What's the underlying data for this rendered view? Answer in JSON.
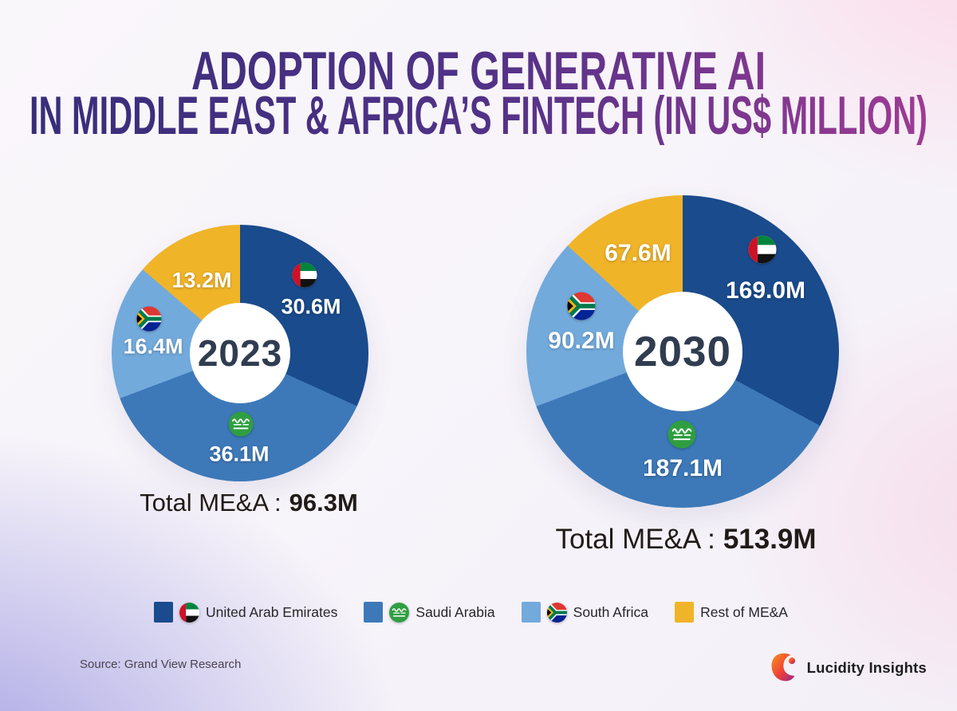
{
  "title": {
    "line1": "ADOPTION OF GENERATIVE AI",
    "line2": "IN MIDDLE EAST & AFRICA’S FINTECH (IN US$ MILLION)",
    "gradient": [
      "#362d79",
      "#503287",
      "#a33c94"
    ]
  },
  "chart_data": {
    "type": "pie",
    "subtype": "donut-pair",
    "unit": "US$ Million",
    "legend_position": "bottom",
    "start_angle_deg": 0,
    "direction": "clockwise",
    "categories": [
      "United Arab Emirates",
      "Saudi Arabia",
      "South Africa",
      "Rest of ME&A"
    ],
    "colors": [
      "#1a4b8c",
      "#3d79b8",
      "#72aadc",
      "#f0b429"
    ],
    "icons": [
      "uae-flag-icon",
      "saudi-flag-icon",
      "south-africa-flag-icon",
      null
    ],
    "charts": [
      {
        "center_label": "2023",
        "values": [
          30.6,
          36.1,
          16.4,
          13.2
        ],
        "value_labels": [
          "30.6M",
          "36.1M",
          "16.4M",
          "13.2M"
        ],
        "total_label": "Total ME&A :",
        "total_value": "96.3M"
      },
      {
        "center_label": "2030",
        "values": [
          169.0,
          187.1,
          90.2,
          67.6
        ],
        "value_labels": [
          "169.0M",
          "187.1M",
          "90.2M",
          "67.6M"
        ],
        "total_label": "Total ME&A :",
        "total_value": "513.9M"
      }
    ]
  },
  "legend": {
    "items": [
      {
        "label": "United Arab Emirates",
        "color": "#1a4b8c",
        "icon": "uae-flag-icon"
      },
      {
        "label": "Saudi Arabia",
        "color": "#3d79b8",
        "icon": "saudi-flag-icon"
      },
      {
        "label": "South Africa",
        "color": "#72aadc",
        "icon": "south-africa-flag-icon"
      },
      {
        "label": "Rest of ME&A",
        "color": "#f0b429",
        "icon": null
      }
    ]
  },
  "footer": {
    "source": "Source: Grand View Research",
    "brand": "Lucidity Insights"
  }
}
